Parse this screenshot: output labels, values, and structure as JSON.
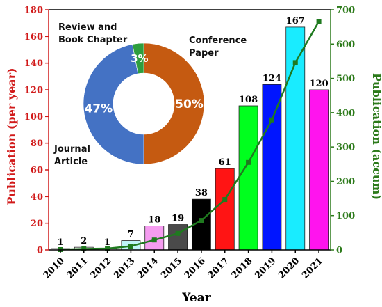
{
  "chart_data": [
    {
      "type": "bar",
      "categories": [
        "2010",
        "2011",
        "2012",
        "2013",
        "2014",
        "2015",
        "2016",
        "2017",
        "2018",
        "2019",
        "2020",
        "2021"
      ],
      "values": [
        1,
        2,
        1,
        7,
        18,
        19,
        38,
        61,
        108,
        124,
        167,
        120
      ],
      "bar_colors": [
        "#fafafa",
        "#ffffff",
        "#ffffff",
        "#bff3f8",
        "#f59cf0",
        "#4a4a4a",
        "#000000",
        "#ff1414",
        "#00ff1e",
        "#0015ff",
        "#19ecff",
        "#ff14ee"
      ],
      "line_series": {
        "values": [
          1,
          3,
          4,
          11,
          29,
          48,
          86,
          147,
          255,
          379,
          546,
          666
        ],
        "color": "#1f7a1f"
      },
      "xlabel": "Year",
      "ylabel": "Publication (per year)",
      "y2label": "Publication (accum)",
      "ylim": [
        0,
        180
      ],
      "y2lim": [
        0,
        700
      ],
      "yticks": [
        0,
        20,
        40,
        60,
        80,
        100,
        120,
        140,
        160,
        180
      ],
      "y2ticks": [
        0,
        100,
        200,
        300,
        400,
        500,
        600,
        700
      ],
      "ylabel_color": "#d11a1a",
      "y2label_color": "#2c7a1a"
    },
    {
      "type": "pie",
      "labels": [
        "Conference Paper",
        "Journal Article",
        "Review and Book Chapter"
      ],
      "label_texts": {
        "conference": [
          "Conference",
          "Paper"
        ],
        "journal": [
          "Journal",
          "Article"
        ],
        "review": [
          "Review and",
          "Book Chapter"
        ]
      },
      "values": [
        50,
        47,
        3
      ],
      "value_labels": [
        "50%",
        "47%",
        "3%"
      ],
      "colors": [
        "#c55a11",
        "#4472c4",
        "#2e9e3e"
      ]
    }
  ]
}
